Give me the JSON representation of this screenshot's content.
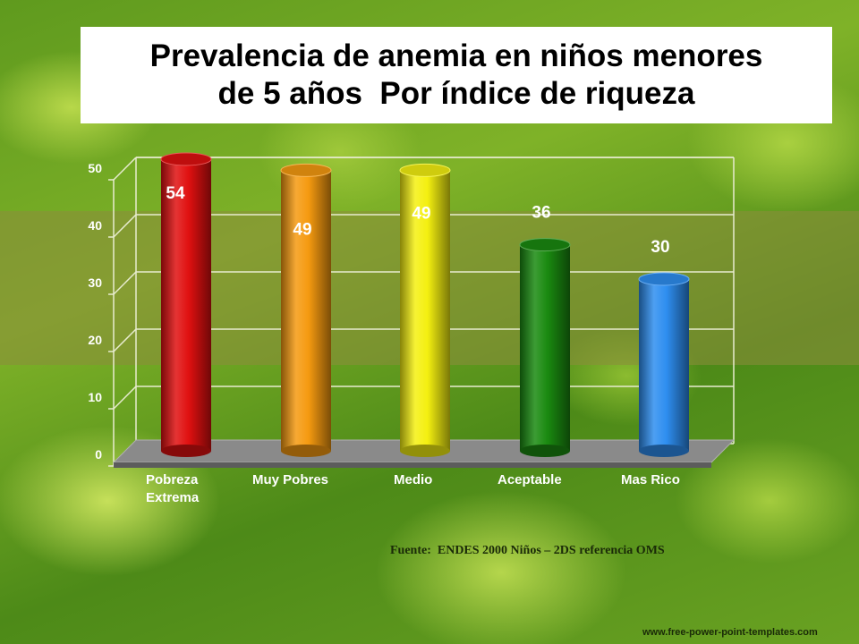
{
  "title": {
    "line1": "Prevalencia de anemia en niños menores",
    "line2": "de 5 años  Por índice de riqueza"
  },
  "chart_data": {
    "type": "bar",
    "categories": [
      "Pobreza\nExtrema",
      "Muy Pobres",
      "Medio",
      "Aceptable",
      "Mas Rico"
    ],
    "values": [
      54,
      49,
      49,
      36,
      30
    ],
    "colors": [
      "#e01010",
      "#f59a10",
      "#f4f010",
      "#1a8a10",
      "#2e8ef0"
    ],
    "ylim": [
      0,
      50
    ],
    "yticks": [
      0,
      10,
      20,
      30,
      40,
      50
    ],
    "grid": true,
    "xlabel": "",
    "ylabel": ""
  },
  "footer": {
    "source": "Fuente:  ENDES 2000 Niños – 2DS referencia OMS",
    "credit": "www.free-power-point-templates.com"
  }
}
